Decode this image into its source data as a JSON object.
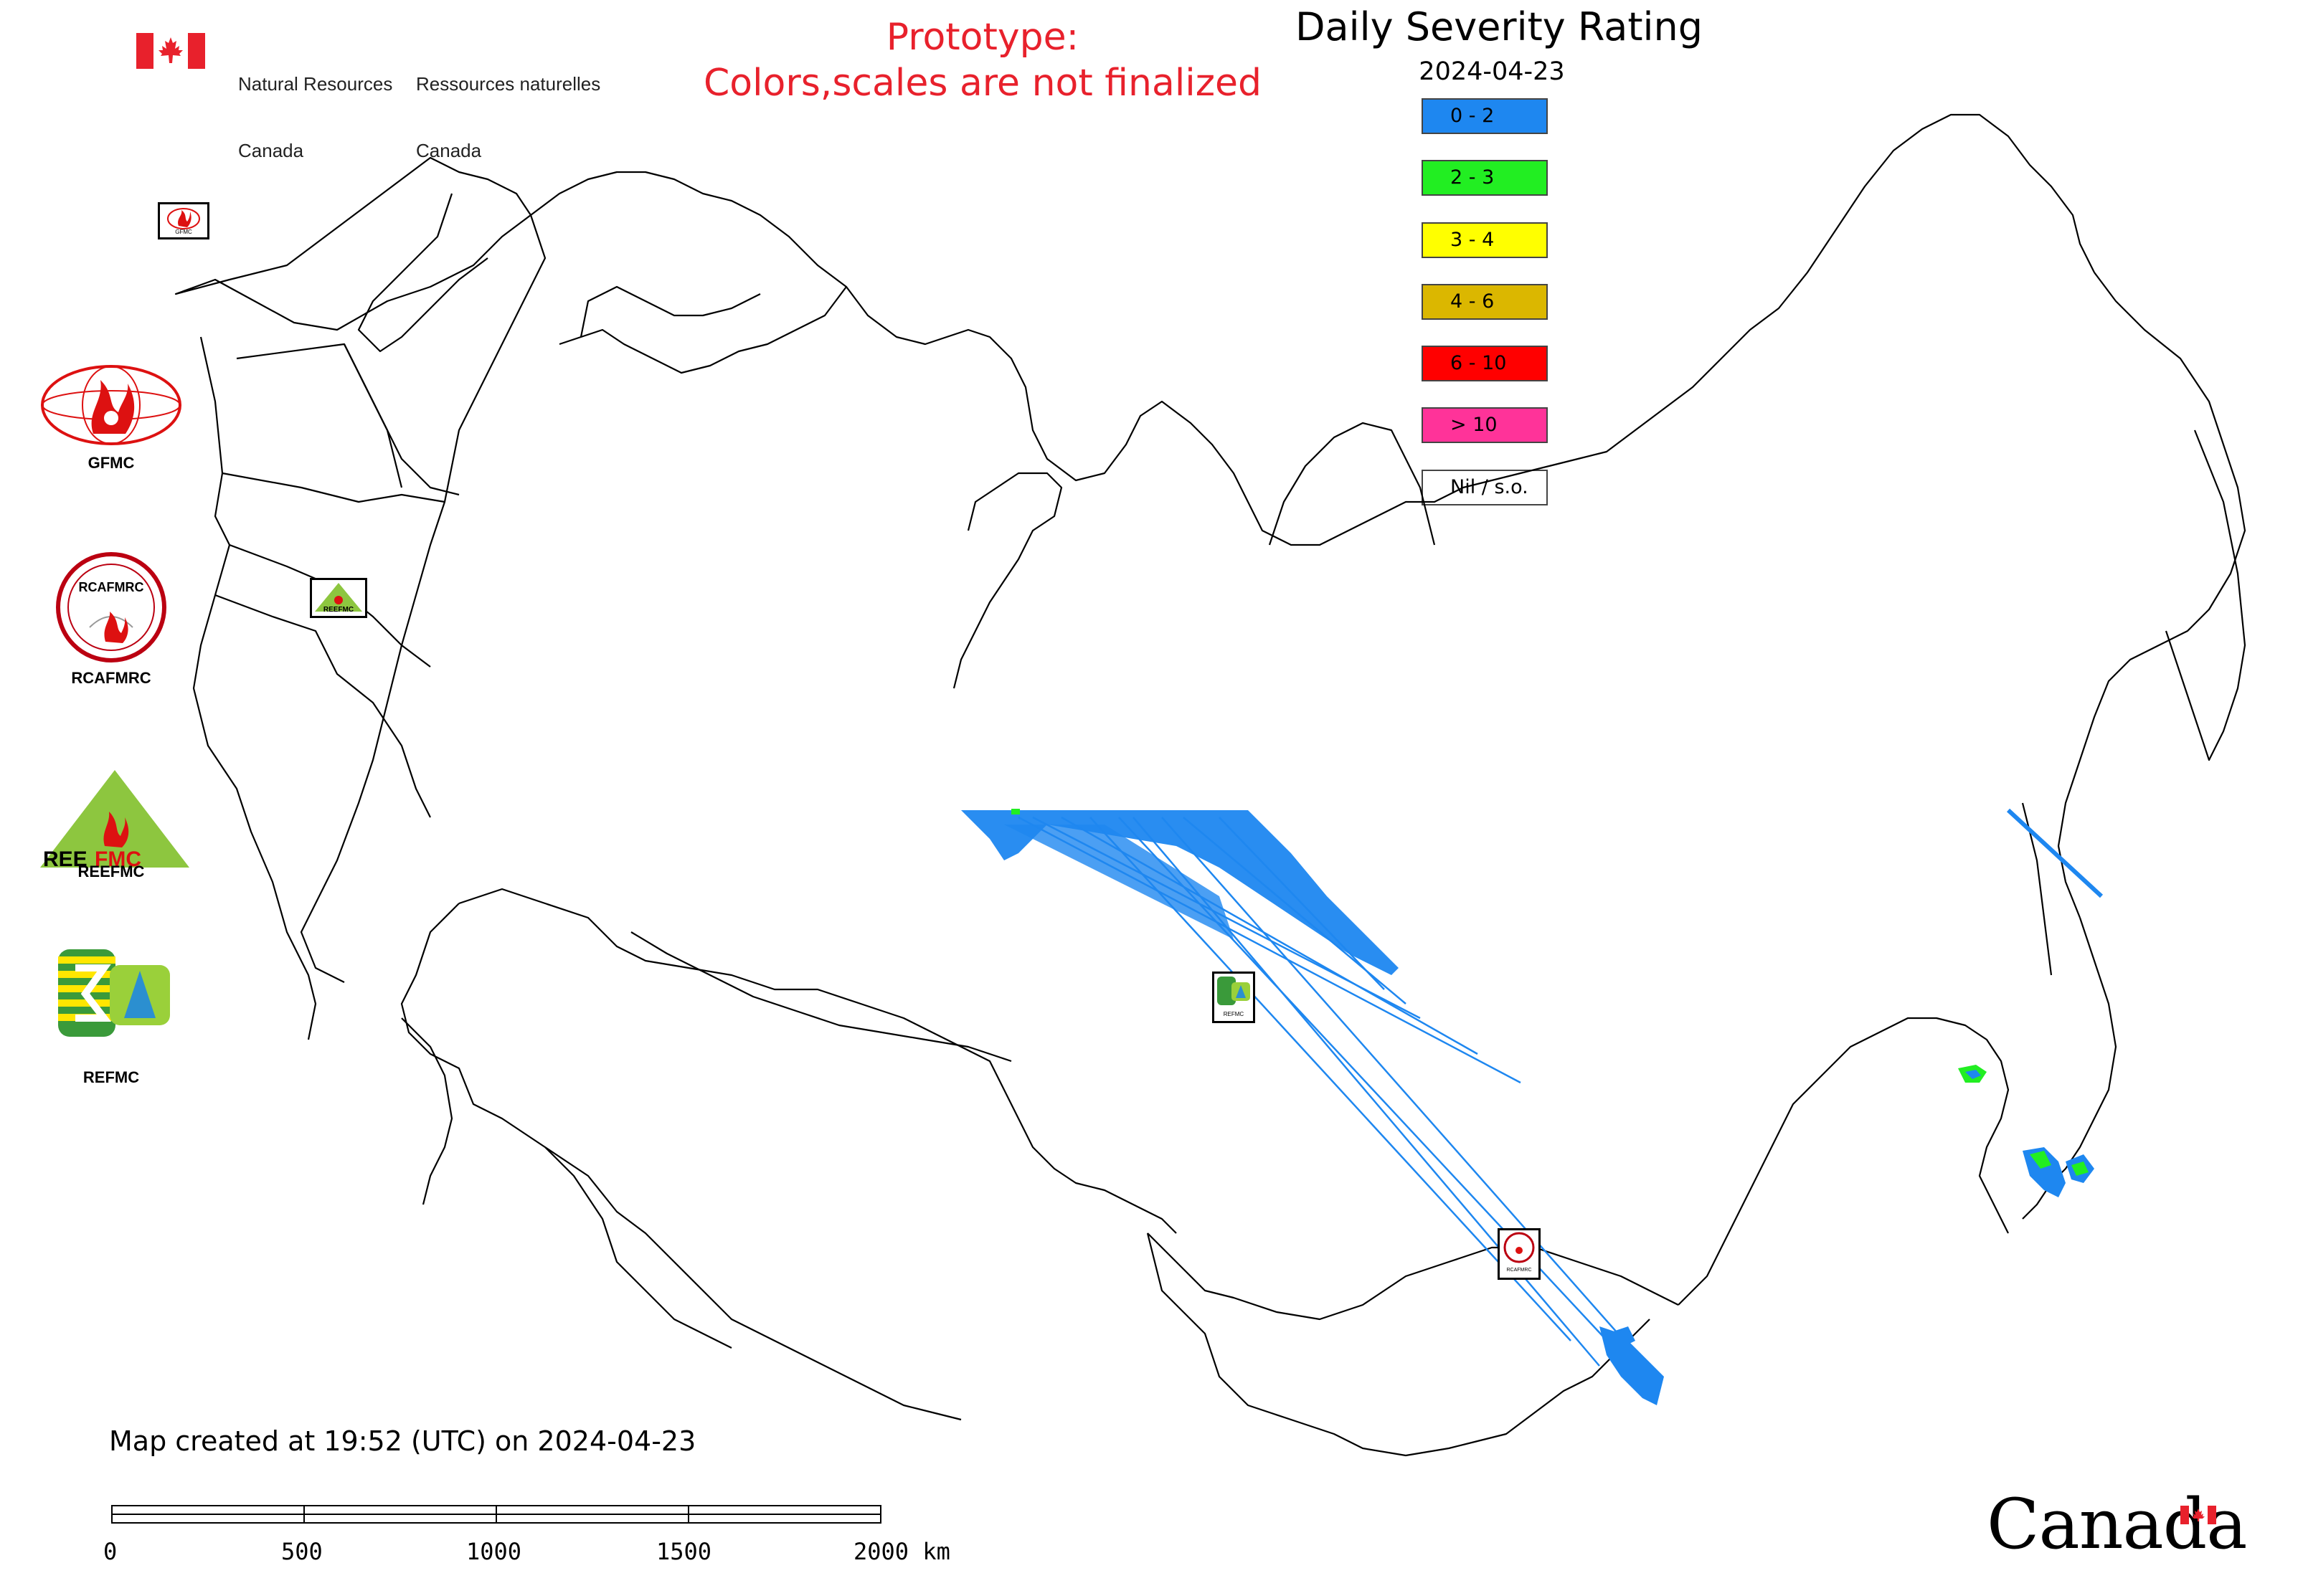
{
  "header": {
    "org_en_line1": "Natural Resources",
    "org_en_line2": "Canada",
    "org_fr_line1": "Ressources naturelles",
    "org_fr_line2": "Canada",
    "flag_color": "#e8212c",
    "prototype_line1": "Prototype:",
    "prototype_line2": "Colors,scales are not finalized",
    "prototype_color": "#e8212c"
  },
  "legend": {
    "title": "Daily Severity Rating",
    "date": "2024-04-23",
    "items": [
      {
        "label": "0 - 2",
        "color": "#1e87f0"
      },
      {
        "label": "2 - 3",
        "color": "#22ee22"
      },
      {
        "label": "3 - 4",
        "color": "#ffff00"
      },
      {
        "label": "4 - 6",
        "color": "#dbb700"
      },
      {
        "label": "6 - 10",
        "color": "#ff0000"
      },
      {
        "label": "> 10",
        "color": "#ff3399"
      },
      {
        "label": "Nil / s.o.",
        "color": "#ffffff"
      }
    ]
  },
  "partners": [
    {
      "name": "GFMC",
      "icon": "gfmc-logo-icon"
    },
    {
      "name": "RCAFMRC",
      "icon": "rcafmrc-logo-icon"
    },
    {
      "name": "REEFMC",
      "icon": "reefmc-logo-icon"
    },
    {
      "name": "REFMC",
      "icon": "refmc-logo-icon"
    }
  ],
  "map_markers": {
    "gfmc": "GFMC",
    "reefmc": "REEFMC",
    "refmc": "REFMC",
    "rcafmrc": "RCAFMRC"
  },
  "footer": {
    "created": "Map created at 19:52 (UTC) on 2024-04-23",
    "scale_labels": [
      "0",
      "500",
      "1000",
      "1500",
      "2000 km"
    ],
    "wordmark": "Canada"
  },
  "colors": {
    "severity_low": "#1e87f0",
    "severity_moderate": "#22ee22",
    "boundary": "#000000"
  }
}
